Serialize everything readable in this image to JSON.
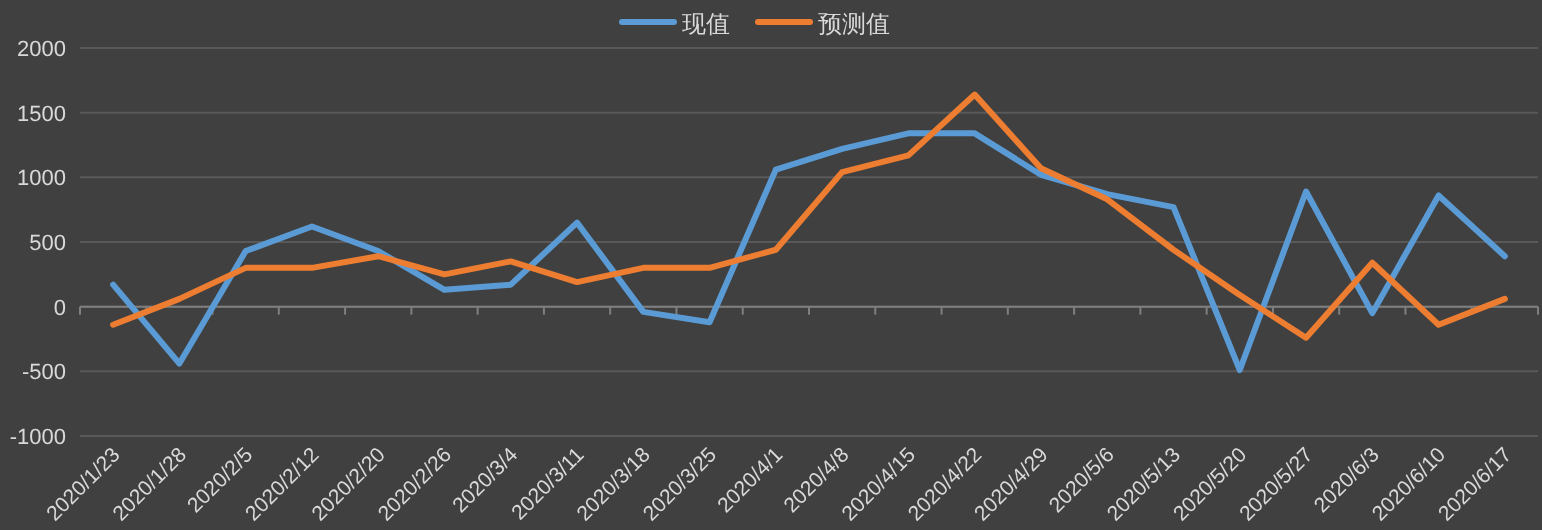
{
  "chart_data": {
    "type": "line",
    "categories": [
      "2020/1/23",
      "2020/1/28",
      "2020/2/5",
      "2020/2/12",
      "2020/2/20",
      "2020/2/26",
      "2020/3/4",
      "2020/3/11",
      "2020/3/18",
      "2020/3/25",
      "2020/4/1",
      "2020/4/8",
      "2020/4/15",
      "2020/4/22",
      "2020/4/29",
      "2020/5/6",
      "2020/5/13",
      "2020/5/20",
      "2020/5/27",
      "2020/6/3",
      "2020/6/10",
      "2020/6/17"
    ],
    "series": [
      {
        "name": "现值",
        "color": "#5b9bd5",
        "values": [
          170,
          -440,
          430,
          620,
          430,
          130,
          170,
          650,
          -40,
          -120,
          1060,
          1220,
          1340,
          1340,
          1020,
          870,
          770,
          -490,
          890,
          -50,
          860,
          390
        ]
      },
      {
        "name": "预测值",
        "color": "#ed7d31",
        "values": [
          -140,
          60,
          300,
          300,
          390,
          250,
          350,
          190,
          300,
          300,
          440,
          1040,
          1170,
          1640,
          1070,
          830,
          440,
          90,
          -240,
          340,
          -140,
          60
        ]
      }
    ],
    "ylim": [
      -1000,
      2000
    ],
    "yticks": [
      -1000,
      -500,
      0,
      500,
      1000,
      1500,
      2000
    ],
    "grid": "y",
    "legend": "top",
    "marker": "none",
    "line_style": "solid"
  }
}
